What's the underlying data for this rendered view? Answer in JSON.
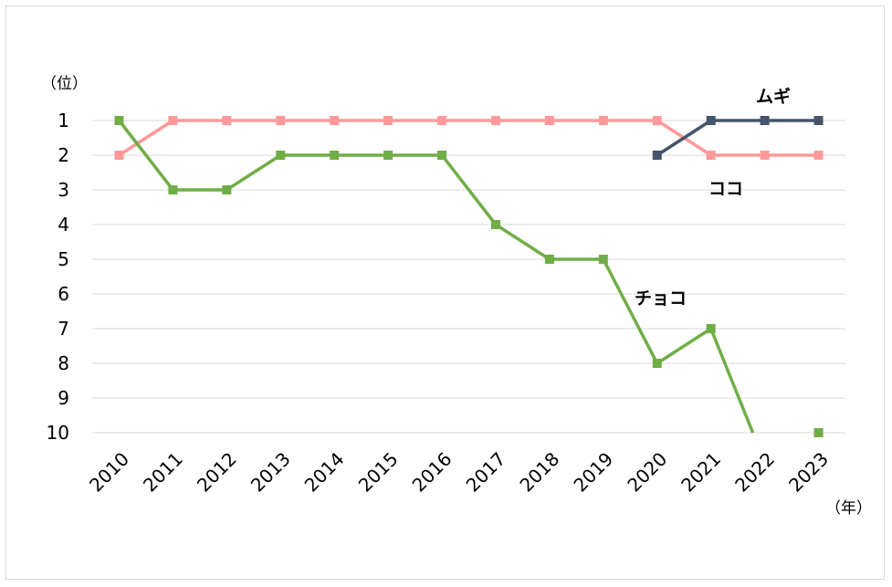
{
  "chart_data": {
    "type": "line",
    "y_unit_label": "（位）",
    "x_unit_label": "（年）",
    "categories": [
      "2010",
      "2011",
      "2012",
      "2013",
      "2014",
      "2015",
      "2016",
      "2017",
      "2018",
      "2019",
      "2020",
      "2021",
      "2022",
      "2023"
    ],
    "ylim": [
      1,
      10
    ],
    "y_ticks": [
      "1",
      "2",
      "3",
      "4",
      "5",
      "6",
      "7",
      "8",
      "9",
      "10"
    ],
    "y_inverted": true,
    "grid": true,
    "series": [
      {
        "name": "ココ",
        "color": "#ff9999",
        "values": [
          2,
          1,
          1,
          1,
          1,
          1,
          1,
          1,
          1,
          1,
          1,
          2,
          2,
          2
        ]
      },
      {
        "name": "チョコ",
        "color": "#70ad47",
        "values": [
          1,
          3,
          3,
          2,
          2,
          2,
          2,
          4,
          5,
          5,
          8,
          7,
          null,
          10
        ]
      },
      {
        "name": "ムギ",
        "color": "#44546a",
        "values": [
          null,
          null,
          null,
          null,
          null,
          null,
          null,
          null,
          null,
          null,
          2,
          1,
          1,
          1
        ]
      }
    ]
  }
}
